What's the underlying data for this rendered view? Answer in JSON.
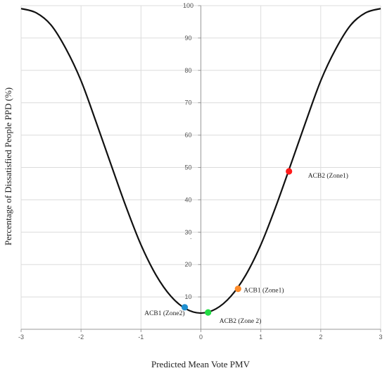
{
  "chart_data": {
    "type": "line",
    "xlabel": "Predicted Mean Vote PMV",
    "ylabel": "Percentage of Dissatisfied People PPD (%)",
    "xlim": [
      -3,
      3
    ],
    "ylim": [
      0,
      100
    ],
    "x_ticks": [
      "-3",
      "-2",
      "-1",
      "0",
      "1",
      "2",
      "3"
    ],
    "y_ticks": [
      "10",
      "20",
      "30",
      "40",
      "50",
      "60",
      "70",
      "80",
      "90",
      "100"
    ],
    "grid": true,
    "curve_color": "#111111",
    "series": [
      {
        "values": [
          [
            -3.0,
            99.1
          ],
          [
            -2.75,
            97.8
          ],
          [
            -2.5,
            94.0
          ],
          [
            -2.25,
            86.6
          ],
          [
            -2.0,
            76.8
          ],
          [
            -1.75,
            64.1
          ],
          [
            -1.5,
            50.9
          ],
          [
            -1.25,
            37.9
          ],
          [
            -1.0,
            26.1
          ],
          [
            -0.75,
            16.8
          ],
          [
            -0.5,
            10.2
          ],
          [
            -0.25,
            6.3
          ],
          [
            0.0,
            5.0
          ],
          [
            0.25,
            6.3
          ],
          [
            0.5,
            10.2
          ],
          [
            0.75,
            16.8
          ],
          [
            1.0,
            26.1
          ],
          [
            1.25,
            37.9
          ],
          [
            1.5,
            50.9
          ],
          [
            1.75,
            64.1
          ],
          [
            2.0,
            76.8
          ],
          [
            2.25,
            86.6
          ],
          [
            2.5,
            94.0
          ],
          [
            2.75,
            97.8
          ],
          [
            3.0,
            99.1
          ]
        ]
      }
    ],
    "points": [
      {
        "label": "ACB2 (Zone1)",
        "x": 1.47,
        "y": 48.8,
        "color": "#ff1a1a",
        "label_side": "right"
      },
      {
        "label": "ACB1 (Zone1)",
        "x": 0.62,
        "y": 12.5,
        "color": "#ff8c2a",
        "label_side": "right"
      },
      {
        "label": "ACB2 (Zone 2)",
        "x": 0.12,
        "y": 5.2,
        "color": "#22dd44",
        "label_side": "below-right"
      },
      {
        "label": "ACB1 (Zone2)",
        "x": -0.27,
        "y": 6.8,
        "color": "#1f8fd0",
        "label_side": "below-left"
      }
    ],
    "stray_mark": "."
  }
}
